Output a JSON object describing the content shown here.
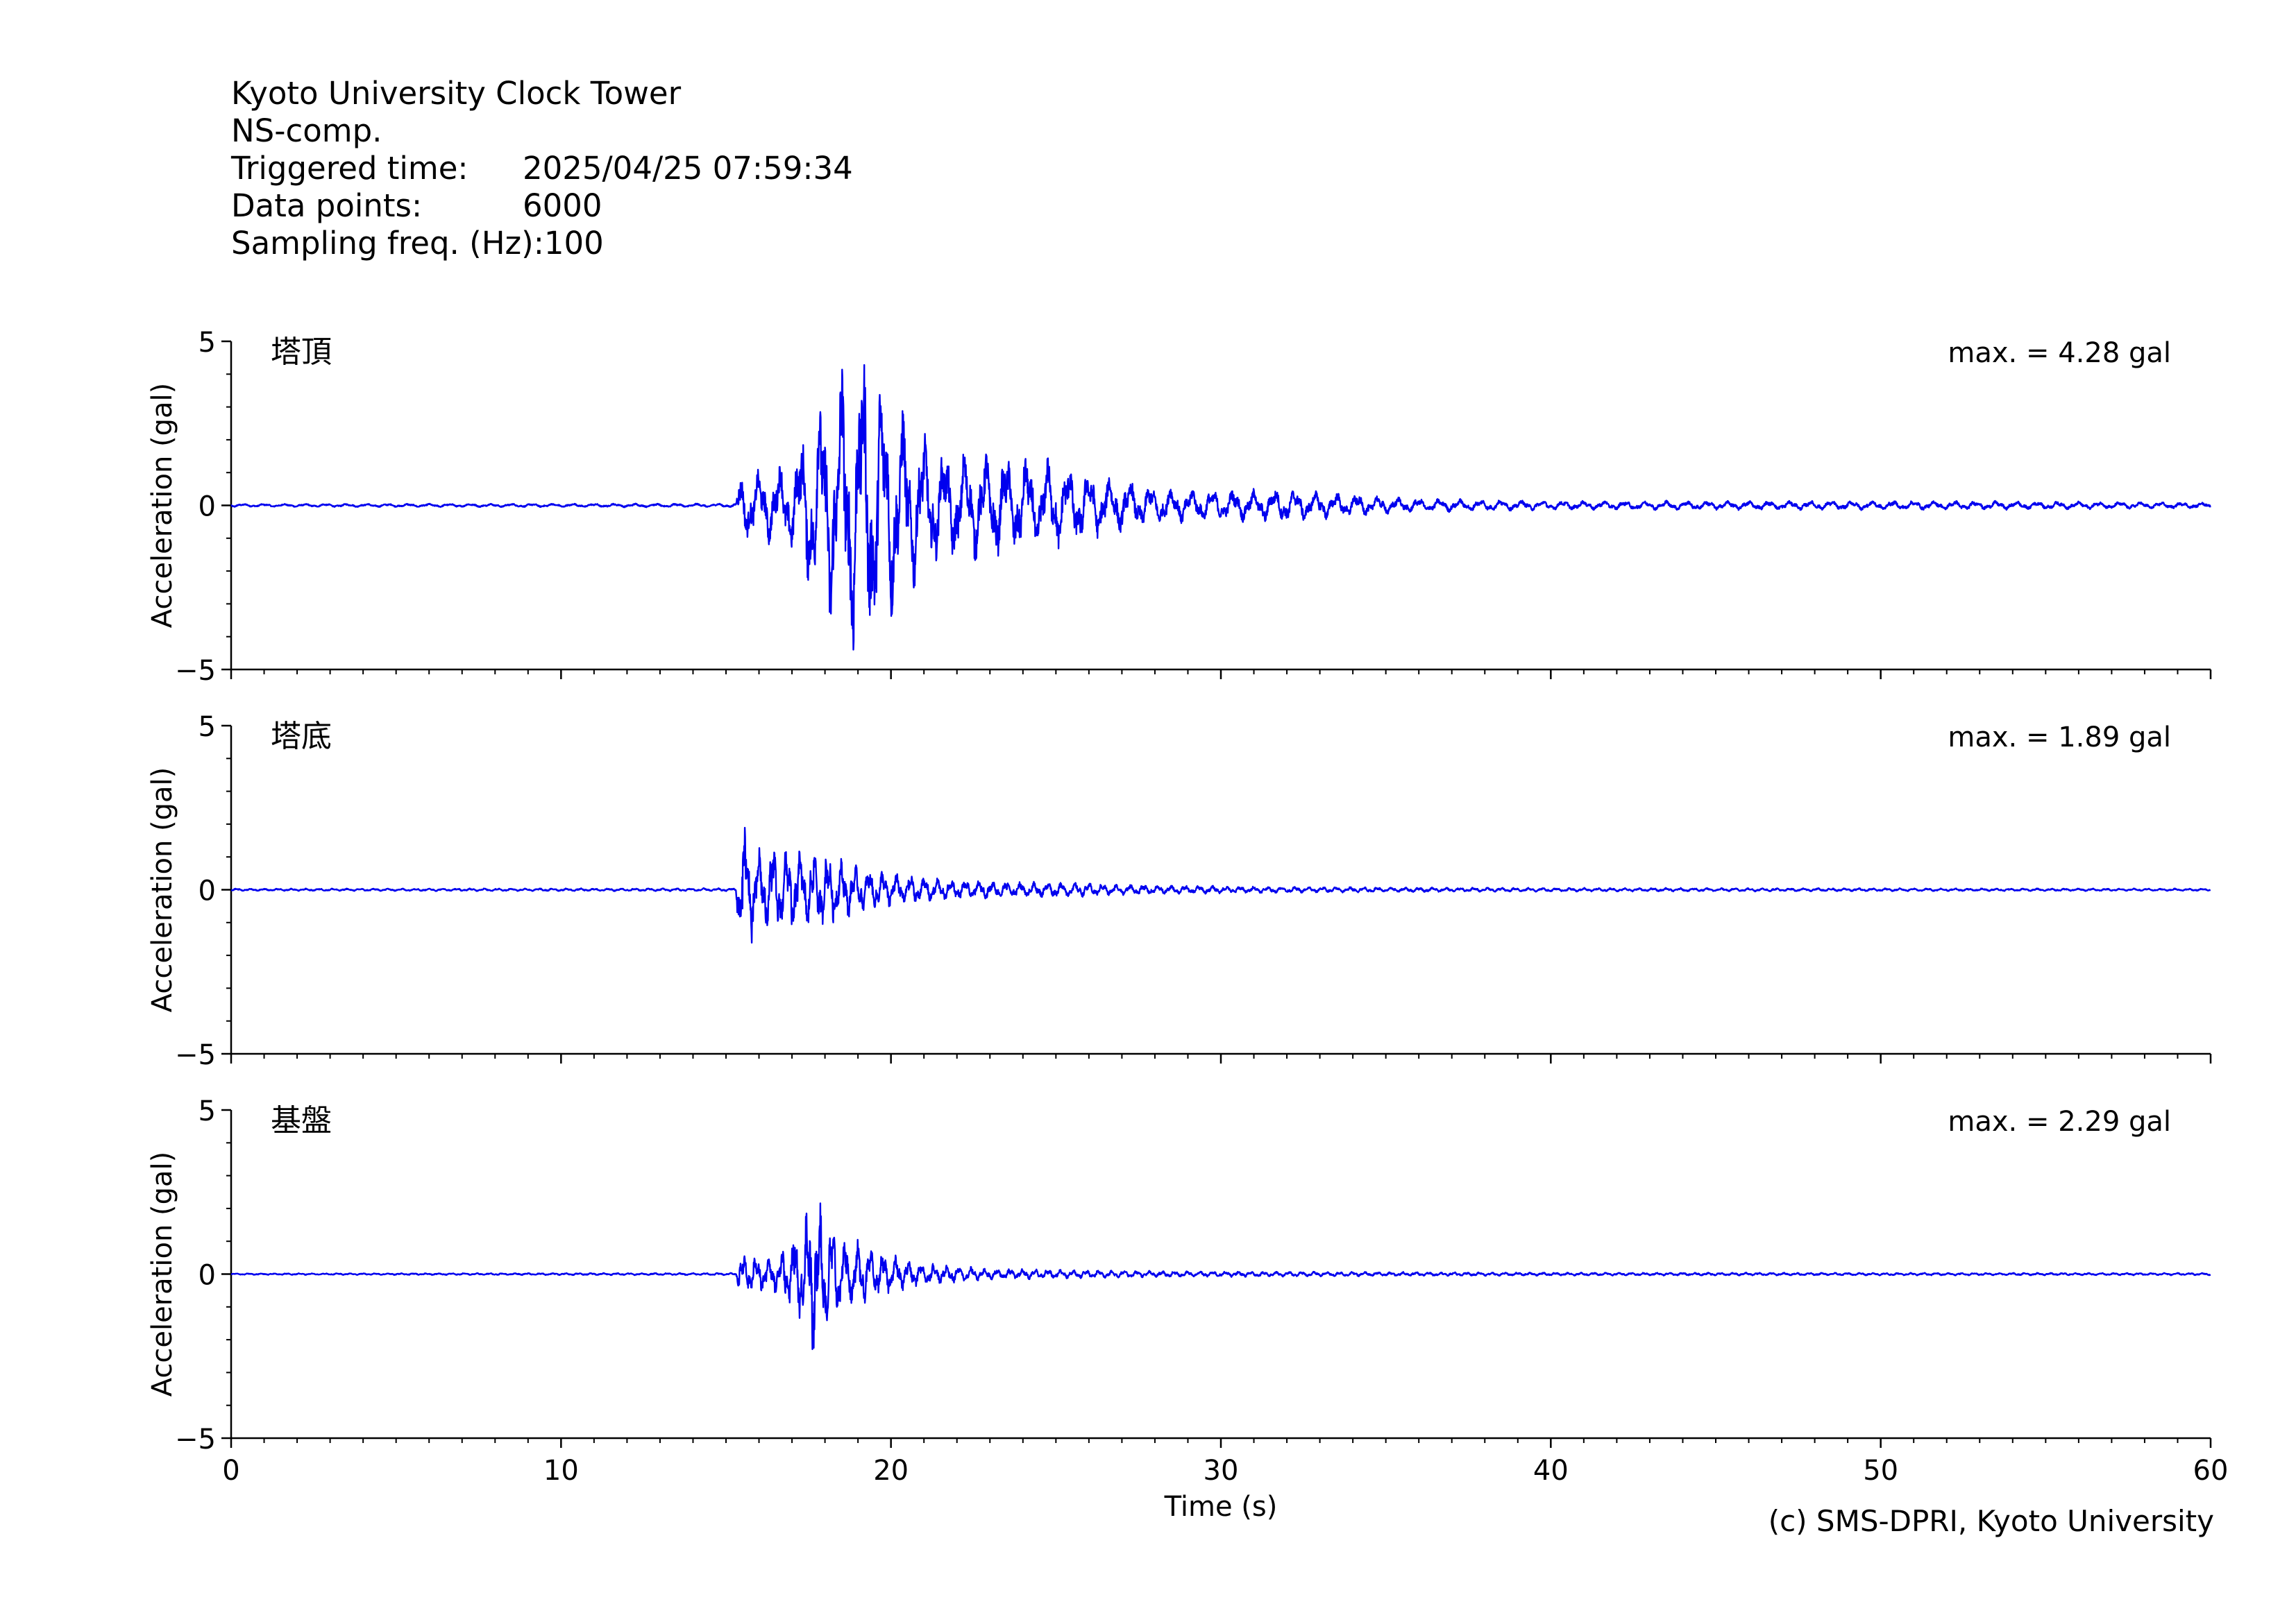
{
  "header": {
    "station": "Kyoto University Clock Tower",
    "component": "NS-comp.",
    "triggered_label": "Triggered time:",
    "triggered_value": "2025/04/25 07:59:34",
    "points_label": "Data points:",
    "points_value": "6000",
    "freq_label": "Sampling freq. (Hz):",
    "freq_value": "100"
  },
  "copyright": "(c) SMS-DPRI, Kyoto University",
  "chart_data": {
    "type": "line",
    "color": "#0000ee",
    "xlabel": "Time (s)",
    "xlim": [
      0,
      60
    ],
    "xticks": [
      0,
      10,
      20,
      30,
      40,
      50,
      60
    ],
    "ylim": [
      -5,
      5
    ],
    "yticks": [
      -5,
      0,
      5
    ],
    "ytick_labels": [
      "−5",
      "0",
      "5"
    ],
    "panels": [
      {
        "label": "塔頂",
        "ylabel": "Acceleration (gal)",
        "max_text": "max. = 4.28 gal",
        "max": 4.28,
        "envelope": [
          [
            0,
            0.04
          ],
          [
            15.3,
            0.05
          ],
          [
            15.4,
            0.9
          ],
          [
            16.0,
            0.9
          ],
          [
            17.0,
            1.2
          ],
          [
            17.7,
            2.7
          ],
          [
            18.3,
            3.4
          ],
          [
            19.1,
            4.28
          ],
          [
            19.7,
            3.5
          ],
          [
            20.5,
            2.3
          ],
          [
            21.5,
            1.5
          ],
          [
            23.0,
            1.4
          ],
          [
            25.0,
            1.2
          ],
          [
            26.5,
            0.8
          ],
          [
            28.0,
            0.5
          ],
          [
            30.0,
            0.4
          ],
          [
            32.0,
            0.45
          ],
          [
            34.0,
            0.3
          ],
          [
            36.0,
            0.18
          ],
          [
            40.0,
            0.12
          ],
          [
            44.0,
            0.12
          ],
          [
            48.0,
            0.12
          ],
          [
            52.0,
            0.12
          ],
          [
            56.0,
            0.1
          ],
          [
            60.0,
            0.08
          ]
        ],
        "freq": 1.6
      },
      {
        "label": "塔底",
        "ylabel": "Acceleration (gal)",
        "max_text": "max. = 1.89 gal",
        "max": 1.89,
        "envelope": [
          [
            0,
            0.03
          ],
          [
            15.3,
            0.04
          ],
          [
            15.4,
            1.6
          ],
          [
            15.5,
            1.89
          ],
          [
            16.0,
            1.1
          ],
          [
            17.0,
            1.2
          ],
          [
            18.0,
            1.0
          ],
          [
            19.0,
            0.6
          ],
          [
            20.5,
            0.4
          ],
          [
            22.0,
            0.25
          ],
          [
            25.0,
            0.2
          ],
          [
            28.0,
            0.12
          ],
          [
            32.0,
            0.08
          ],
          [
            40.0,
            0.05
          ],
          [
            50.0,
            0.04
          ],
          [
            60.0,
            0.03
          ]
        ],
        "freq": 2.4
      },
      {
        "label": "基盤",
        "ylabel": "Acceleration (gal)",
        "max_text": "max. = 2.29 gal",
        "max": 2.29,
        "envelope": [
          [
            0,
            0.02
          ],
          [
            15.3,
            0.03
          ],
          [
            15.4,
            0.5
          ],
          [
            16.5,
            0.5
          ],
          [
            17.3,
            1.3
          ],
          [
            17.6,
            2.29
          ],
          [
            18.3,
            1.2
          ],
          [
            19.5,
            0.6
          ],
          [
            21.0,
            0.3
          ],
          [
            23.0,
            0.15
          ],
          [
            28.0,
            0.08
          ],
          [
            40.0,
            0.04
          ],
          [
            60.0,
            0.03
          ]
        ],
        "freq": 2.6
      }
    ]
  }
}
